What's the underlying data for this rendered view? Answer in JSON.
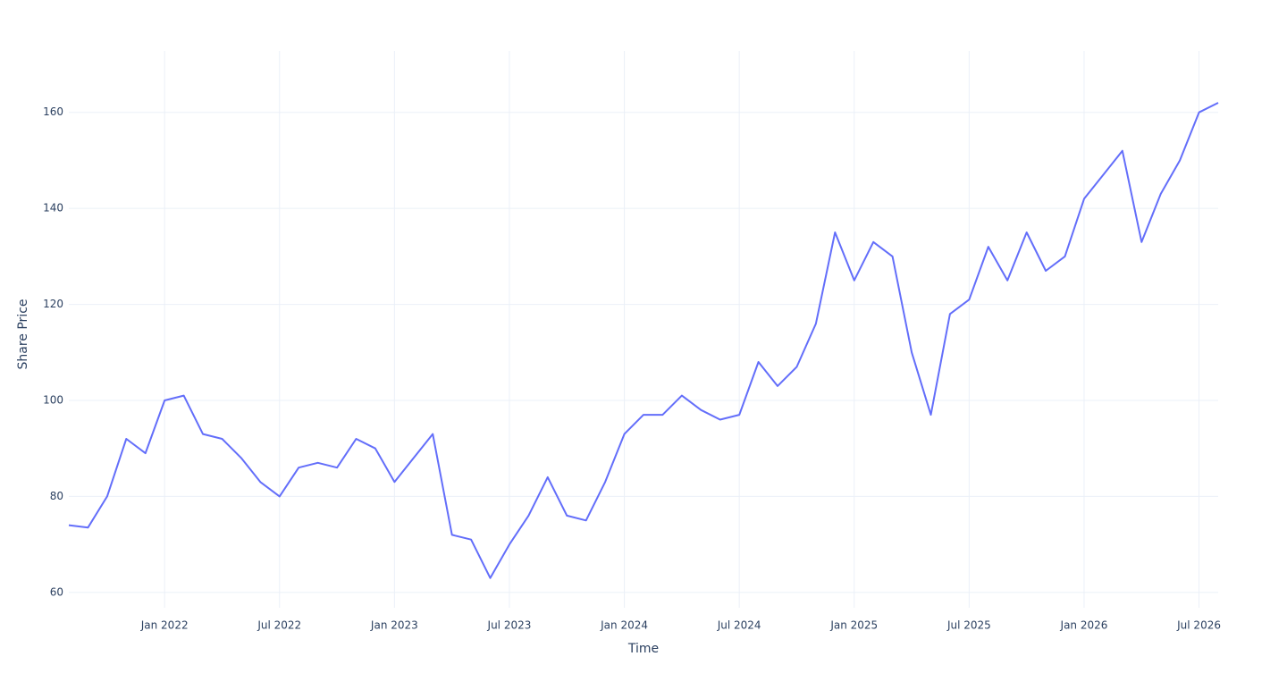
{
  "chart_data": {
    "type": "line",
    "xlabel": "Time",
    "ylabel": "Share Price",
    "x": [
      "2021-08",
      "2021-09",
      "2021-10",
      "2021-11",
      "2021-12",
      "2022-01",
      "2022-02",
      "2022-03",
      "2022-04",
      "2022-05",
      "2022-06",
      "2022-07",
      "2022-08",
      "2022-09",
      "2022-10",
      "2022-11",
      "2022-12",
      "2023-01",
      "2023-02",
      "2023-03",
      "2023-04",
      "2023-05",
      "2023-06",
      "2023-07",
      "2023-08",
      "2023-09",
      "2023-10",
      "2023-11",
      "2023-12",
      "2024-01",
      "2024-02",
      "2024-03",
      "2024-04",
      "2024-05",
      "2024-06",
      "2024-07",
      "2024-08",
      "2024-09",
      "2024-10",
      "2024-11",
      "2024-12",
      "2025-01",
      "2025-02",
      "2025-03",
      "2025-04",
      "2025-05",
      "2025-06",
      "2025-07",
      "2025-08",
      "2025-09",
      "2025-10",
      "2025-11",
      "2025-12",
      "2026-01",
      "2026-02",
      "2026-03",
      "2026-04",
      "2026-05",
      "2026-06",
      "2026-07",
      "2026-08"
    ],
    "series": [
      {
        "name": "Share Price",
        "color": "#636efa",
        "values": [
          74,
          73.5,
          80,
          92,
          89,
          100,
          101,
          93,
          92,
          88,
          83,
          80,
          86,
          87,
          86,
          92,
          90,
          83,
          88,
          93,
          72,
          71,
          63,
          70,
          76,
          84,
          76,
          75,
          83,
          93,
          97,
          97,
          101,
          98,
          96,
          97,
          108,
          103,
          107,
          116,
          135,
          125,
          133,
          130,
          110,
          97,
          118,
          121,
          132,
          125,
          135,
          127,
          130,
          142,
          147,
          152,
          133,
          143,
          150,
          160,
          162
        ]
      }
    ],
    "xlim": [
      "2021-08",
      "2026-08"
    ],
    "xticks": [
      {
        "value": "2022-01",
        "label": "Jan 2022"
      },
      {
        "value": "2022-07",
        "label": "Jul 2022"
      },
      {
        "value": "2023-01",
        "label": "Jan 2023"
      },
      {
        "value": "2023-07",
        "label": "Jul 2023"
      },
      {
        "value": "2024-01",
        "label": "Jan 2024"
      },
      {
        "value": "2024-07",
        "label": "Jul 2024"
      },
      {
        "value": "2025-01",
        "label": "Jan 2025"
      },
      {
        "value": "2025-07",
        "label": "Jul 2025"
      },
      {
        "value": "2026-01",
        "label": "Jan 2026"
      },
      {
        "value": "2026-07",
        "label": "Jul 2026"
      }
    ],
    "ylim": [
      56.8,
      172.8
    ],
    "yticks": [
      60,
      80,
      100,
      120,
      140,
      160
    ],
    "grid": true
  }
}
